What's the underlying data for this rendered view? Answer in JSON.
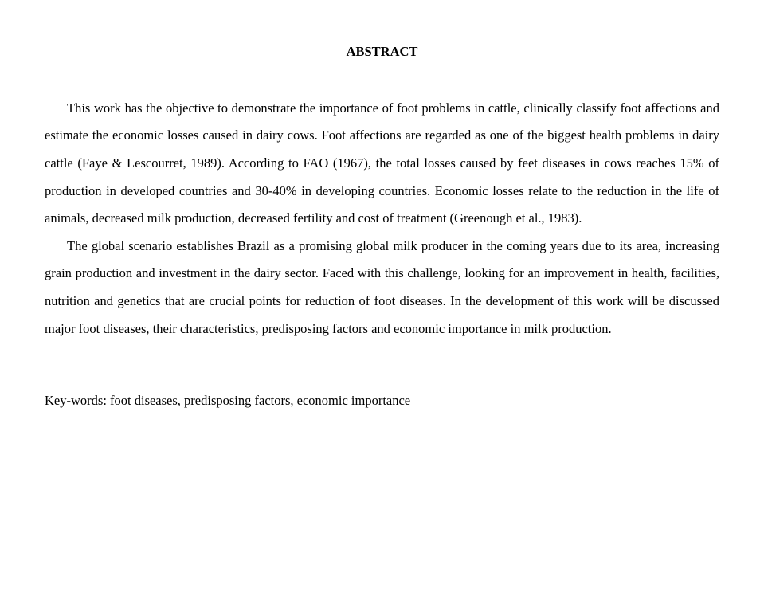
{
  "abstract": {
    "title": "ABSTRACT",
    "paragraph1": "This work has the objective to demonstrate the importance of foot problems in cattle, clinically classify foot affections and estimate the economic losses caused in dairy cows. Foot affections are regarded as one of the biggest health problems in dairy cattle (Faye & Lescourret, 1989). According to FAO (1967), the total losses caused by feet diseases in cows reaches 15% of production in developed countries and 30-40% in developing countries. Economic losses relate to the reduction in the life of animals, decreased milk production, decreased fertility and cost of treatment (Greenough et al., 1983).",
    "paragraph2": "The global scenario establishes Brazil as a promising global milk producer in the coming years due to its area, increasing grain production and investment in the dairy sector. Faced with this challenge, looking for an improvement in health, facilities, nutrition and genetics that are crucial points for reduction of foot diseases. In the development of this work will be discussed major foot diseases, their characteristics, predisposing factors and economic importance in milk production.",
    "keywords": "Key-words: foot diseases, predisposing factors, economic importance"
  }
}
